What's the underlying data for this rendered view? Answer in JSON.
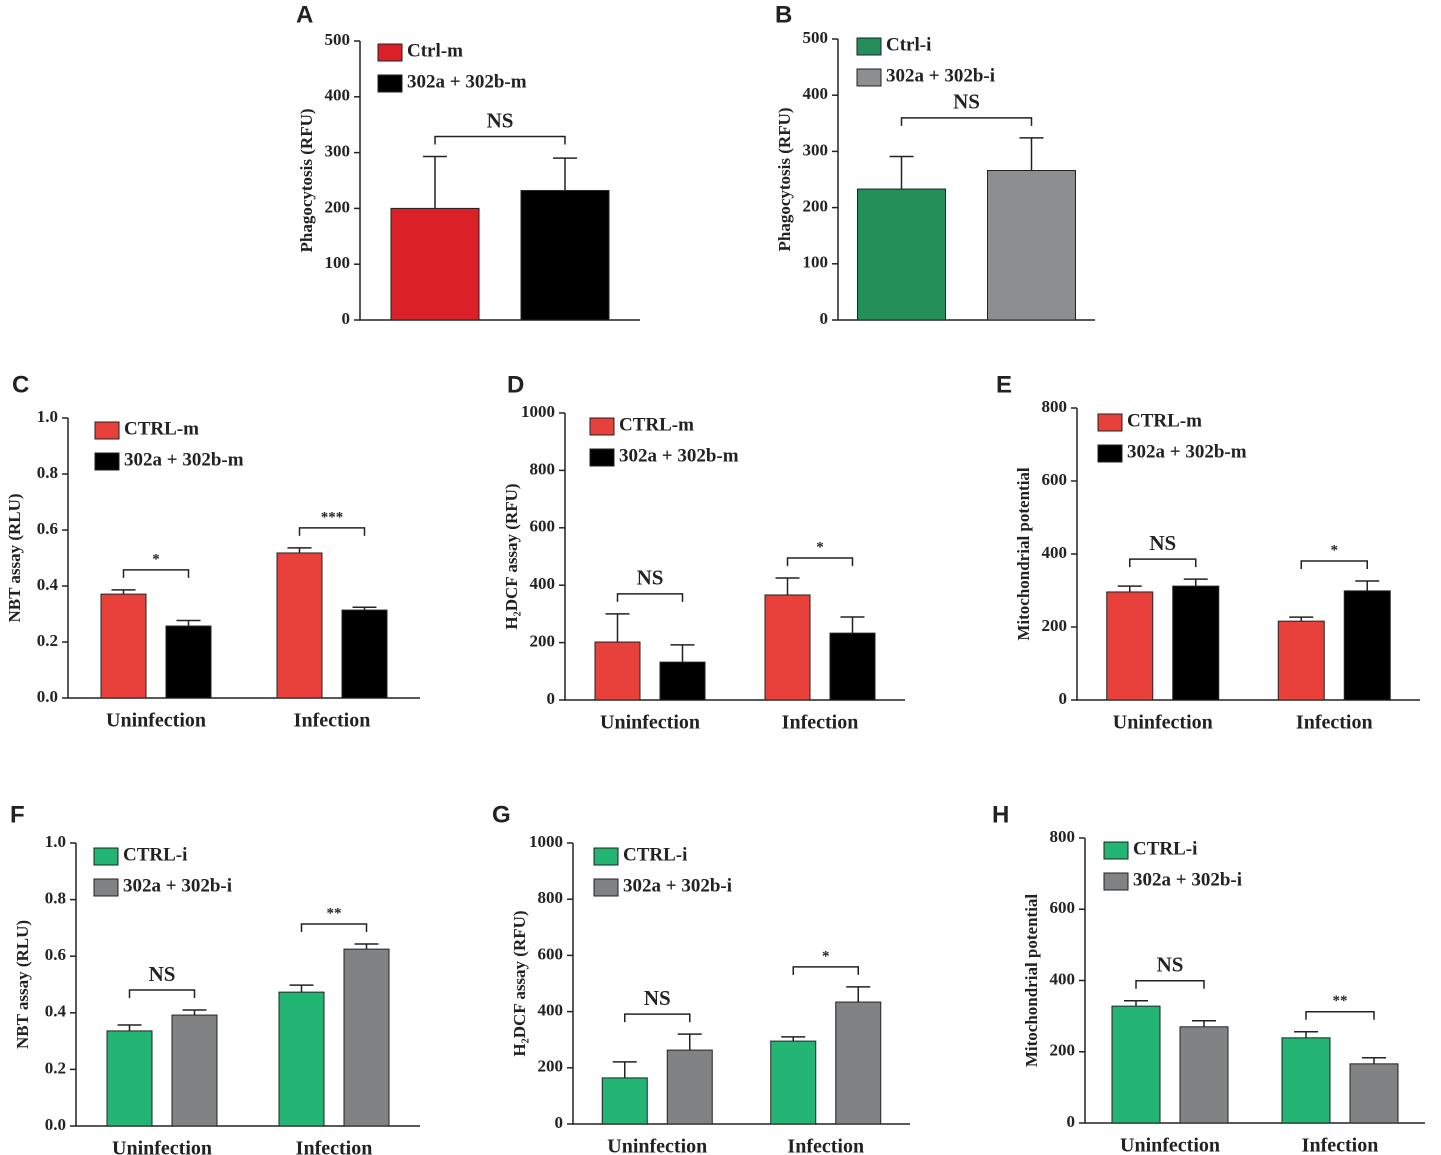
{
  "chart_data": [
    {
      "type": "bar",
      "panel": "A",
      "ylabel": "Phagocytosis (RFU)",
      "categories": [
        null
      ],
      "series": [
        {
          "name": "Ctrl-m",
          "color": "#dc2027",
          "values": [
            200
          ],
          "errors": [
            93
          ]
        },
        {
          "name": "302a + 302b-m",
          "color": "#000000",
          "values": [
            232
          ],
          "errors": [
            58
          ]
        }
      ],
      "annotations": [
        "NS"
      ],
      "ylim": [
        0,
        500
      ],
      "yticks": [
        0,
        100,
        200,
        300,
        400,
        500
      ]
    },
    {
      "type": "bar",
      "panel": "B",
      "ylabel": "Phagocytosis (RFU)",
      "categories": [
        null
      ],
      "series": [
        {
          "name": "Ctrl-i",
          "color": "#23905a",
          "values": [
            233
          ],
          "errors": [
            58
          ]
        },
        {
          "name": "302a + 302b-i",
          "color": "#8c8e8f",
          "values": [
            266
          ],
          "errors": [
            58
          ]
        }
      ],
      "annotations": [
        "NS"
      ],
      "ylim": [
        0,
        500
      ],
      "yticks": [
        0,
        100,
        200,
        300,
        400,
        500
      ]
    },
    {
      "type": "bar",
      "panel": "C",
      "ylabel": "NBT assay (RLU)",
      "categories": [
        "Uninfection",
        "Infection"
      ],
      "series": [
        {
          "name": "CTRL-m",
          "color": "#e8403a",
          "values": [
            0.371,
            0.518
          ],
          "errors": [
            0.015,
            0.018
          ]
        },
        {
          "name": "302a + 302b-m",
          "color": "#000000",
          "values": [
            0.257,
            0.314
          ],
          "errors": [
            0.02,
            0.01
          ]
        }
      ],
      "annotations": [
        "*",
        "***"
      ],
      "ylim": [
        0,
        1
      ],
      "yticks": [
        {
          "value": 0,
          "label": "0.0"
        },
        0.2,
        0.4,
        0.6,
        0.8,
        {
          "value": 1,
          "label": "1.0"
        }
      ]
    },
    {
      "type": "bar",
      "panel": "D",
      "ylabel": "H₂DCF assay (RFU)",
      "categories": [
        "Uninfection",
        "Infection"
      ],
      "series": [
        {
          "name": "CTRL-m",
          "color": "#e8403a",
          "values": [
            202,
            366
          ],
          "errors": [
            98,
            59
          ]
        },
        {
          "name": "302a + 302b-m",
          "color": "#000000",
          "values": [
            132,
            233
          ],
          "errors": [
            60,
            56
          ]
        }
      ],
      "annotations": [
        "NS",
        "*"
      ],
      "ylim": [
        0,
        1000
      ],
      "yticks": [
        0,
        200,
        400,
        600,
        800,
        1000
      ]
    },
    {
      "type": "bar",
      "panel": "E",
      "ylabel": "Mitochondrial potential",
      "categories": [
        "Uninfection",
        "Infection"
      ],
      "series": [
        {
          "name": "CTRL-m",
          "color": "#e8403a",
          "values": [
            296,
            216
          ],
          "errors": [
            16,
            11
          ]
        },
        {
          "name": "302a + 302b-m",
          "color": "#000000",
          "values": [
            312,
            299
          ],
          "errors": [
            19,
            27
          ]
        }
      ],
      "annotations": [
        "NS",
        "*"
      ],
      "ylim": [
        0,
        800
      ],
      "yticks": [
        0,
        200,
        400,
        600,
        800
      ]
    },
    {
      "type": "bar",
      "panel": "F",
      "ylabel": "NBT assay (RLU)",
      "categories": [
        "Uninfection",
        "Infection"
      ],
      "series": [
        {
          "name": "CTRL-i",
          "color": "#22b573",
          "values": [
            0.336,
            0.473
          ],
          "errors": [
            0.021,
            0.025
          ]
        },
        {
          "name": "302a + 302b-i",
          "color": "#808284",
          "values": [
            0.392,
            0.625
          ],
          "errors": [
            0.018,
            0.018
          ]
        }
      ],
      "annotations": [
        "NS",
        "**"
      ],
      "ylim": [
        0,
        1
      ],
      "yticks": [
        {
          "value": 0,
          "label": "0.0"
        },
        0.2,
        0.4,
        0.6,
        0.8,
        {
          "value": 1,
          "label": "1.0"
        }
      ]
    },
    {
      "type": "bar",
      "panel": "G",
      "ylabel": "H₂DCF assay (RFU)",
      "categories": [
        "Uninfection",
        "Infection"
      ],
      "series": [
        {
          "name": "CTRL-i",
          "color": "#22b573",
          "values": [
            164,
            295
          ],
          "errors": [
            57,
            15
          ]
        },
        {
          "name": "302a + 302b-i",
          "color": "#808284",
          "values": [
            263,
            434
          ],
          "errors": [
            57,
            54
          ]
        }
      ],
      "annotations": [
        "NS",
        "*"
      ],
      "ylim": [
        0,
        1000
      ],
      "yticks": [
        0,
        200,
        400,
        600,
        800,
        1000
      ]
    },
    {
      "type": "bar",
      "panel": "H",
      "ylabel": "Mitochondrial potential",
      "categories": [
        "Uninfection",
        "Infection"
      ],
      "series": [
        {
          "name": "CTRL-i",
          "color": "#22b573",
          "values": [
            328,
            239
          ],
          "errors": [
            15,
            17
          ]
        },
        {
          "name": "302a + 302b-i",
          "color": "#808284",
          "values": [
            270,
            166
          ],
          "errors": [
            17,
            17
          ]
        }
      ],
      "annotations": [
        "NS",
        "**"
      ],
      "ylim": [
        0,
        800
      ],
      "yticks": [
        0,
        200,
        400,
        600,
        800
      ]
    }
  ]
}
